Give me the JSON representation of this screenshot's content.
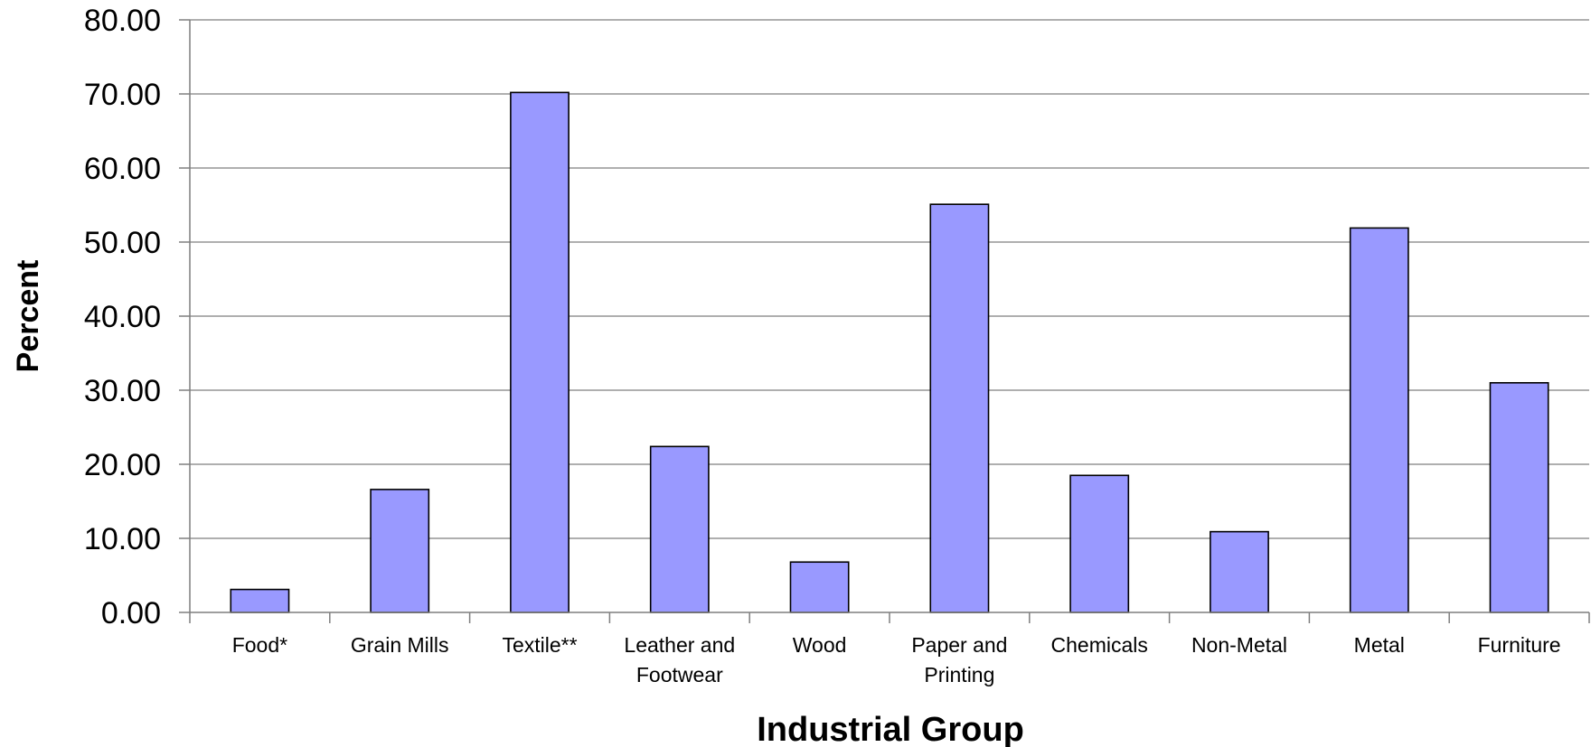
{
  "chart_data": {
    "type": "bar",
    "categories": [
      [
        "Food*"
      ],
      [
        "Grain Mills"
      ],
      [
        "Textile**"
      ],
      [
        "Leather and",
        "Footwear"
      ],
      [
        "Wood"
      ],
      [
        "Paper and",
        "Printing"
      ],
      [
        "Chemicals"
      ],
      [
        "Non-Metal"
      ],
      [
        "Metal"
      ],
      [
        "Furniture"
      ]
    ],
    "values": [
      3.1,
      16.6,
      70.2,
      22.4,
      6.8,
      55.1,
      18.5,
      10.9,
      51.9,
      31.0
    ],
    "xlabel": "Industrial Group",
    "ylabel": "Percent",
    "ylim": [
      0,
      80
    ],
    "yticks": [
      "0.00",
      "10.00",
      "20.00",
      "30.00",
      "40.00",
      "50.00",
      "60.00",
      "70.00",
      "80.00"
    ],
    "grid": true,
    "bar_color": "#9999ff",
    "bar_edge_color": "#000000",
    "legend": "none"
  }
}
